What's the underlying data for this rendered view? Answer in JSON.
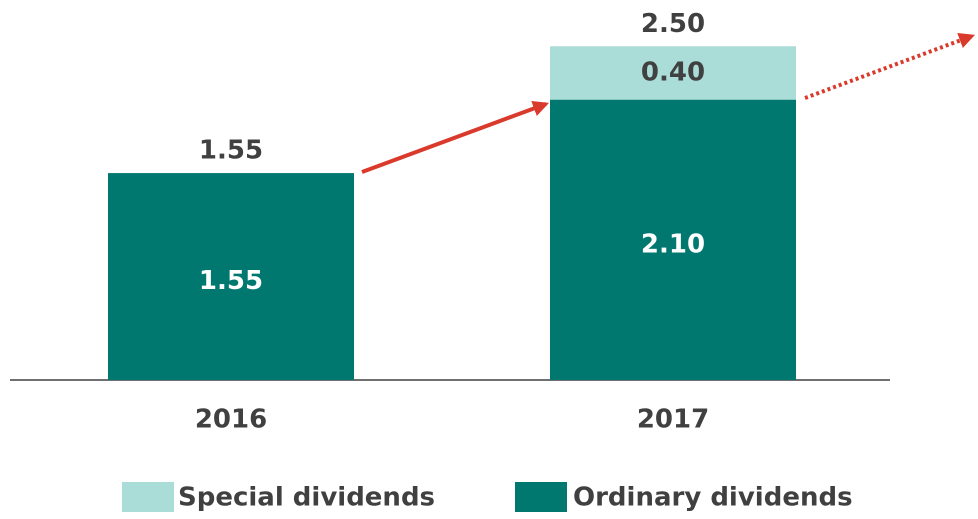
{
  "chart_data": {
    "type": "stacked_bar",
    "categories": [
      "2016",
      "2017"
    ],
    "series": [
      {
        "name": "Ordinary dividends",
        "color": "#007870",
        "values": [
          1.55,
          2.1
        ],
        "value_labels": [
          "1.55",
          "2.10"
        ]
      },
      {
        "name": "Special dividends",
        "color": "#aadcd8",
        "values": [
          null,
          0.4
        ],
        "value_labels": [
          null,
          "0.40"
        ]
      }
    ],
    "totals": [
      1.55,
      2.5
    ],
    "total_labels": [
      "1.55",
      "2.50"
    ]
  }
}
